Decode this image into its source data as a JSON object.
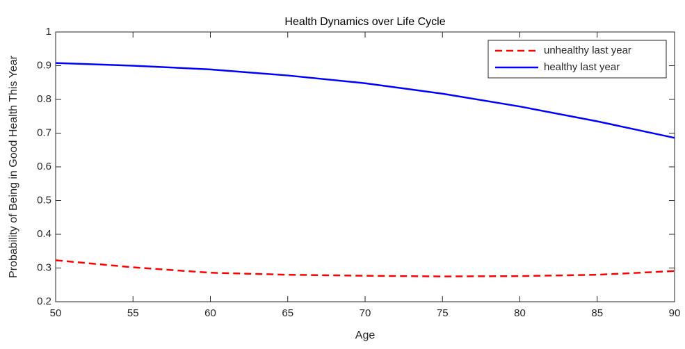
{
  "chart_data": {
    "type": "line",
    "title": "Health Dynamics over Life Cycle",
    "x_label": "Age",
    "y_label": "Probability of Being in Good Health This Year",
    "x": [
      50,
      55,
      60,
      65,
      70,
      75,
      80,
      85,
      90
    ],
    "series": [
      {
        "name": "unhealthy last year",
        "color": "#ff0000",
        "dash": "dashed",
        "values": [
          0.323,
          0.302,
          0.286,
          0.28,
          0.277,
          0.275,
          0.276,
          0.28,
          0.291
        ]
      },
      {
        "name": "healthy last year",
        "color": "#0000ff",
        "dash": "solid",
        "values": [
          0.908,
          0.9,
          0.889,
          0.871,
          0.848,
          0.817,
          0.779,
          0.735,
          0.686
        ]
      }
    ],
    "xlim": [
      50,
      90
    ],
    "xticks": [
      50,
      55,
      60,
      65,
      70,
      75,
      80,
      85,
      90
    ],
    "ylim": [
      0.2,
      1
    ],
    "yticks": [
      0.2,
      0.3,
      0.4,
      0.5,
      0.6,
      0.7,
      0.8,
      0.9,
      1
    ],
    "legend": "upper right",
    "grid": false
  }
}
